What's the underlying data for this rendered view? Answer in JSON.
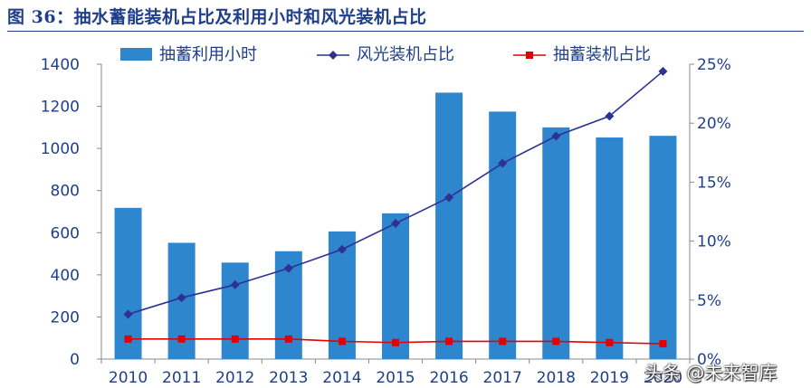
{
  "title": "图 36：抽水蓄能装机占比及利用小时和风光装机占比",
  "watermark": "头条 @未来智库",
  "chart_data": {
    "type": "bar",
    "categories": [
      "2010",
      "2011",
      "2012",
      "2013",
      "2014",
      "2015",
      "2016",
      "2017",
      "2018",
      "2019",
      "2020"
    ],
    "series": [
      {
        "name": "抽蓄利用小时",
        "type": "bar",
        "axis": "left",
        "color": "#2e86cf",
        "values": [
          718,
          552,
          458,
          512,
          606,
          692,
          1265,
          1175,
          1100,
          1052,
          1060
        ]
      },
      {
        "name": "风光装机占比",
        "type": "line",
        "axis": "right",
        "color": "#2e3192",
        "values": [
          3.8,
          5.2,
          6.3,
          7.7,
          9.3,
          11.5,
          13.7,
          16.6,
          18.9,
          20.6,
          24.4
        ]
      },
      {
        "name": "抽蓄装机占比",
        "type": "line",
        "axis": "right",
        "color": "#e30000",
        "values": [
          1.7,
          1.7,
          1.7,
          1.7,
          1.5,
          1.4,
          1.5,
          1.5,
          1.5,
          1.4,
          1.3
        ]
      }
    ],
    "y_left": {
      "ylim": [
        0,
        1400
      ],
      "ticks": [
        "0",
        "200",
        "400",
        "600",
        "800",
        "1000",
        "1200",
        "1400"
      ]
    },
    "y_right": {
      "ylim": [
        0,
        25
      ],
      "ticks": [
        "0%",
        "5%",
        "10%",
        "15%",
        "20%",
        "25%"
      ]
    },
    "legend_position": "top"
  }
}
